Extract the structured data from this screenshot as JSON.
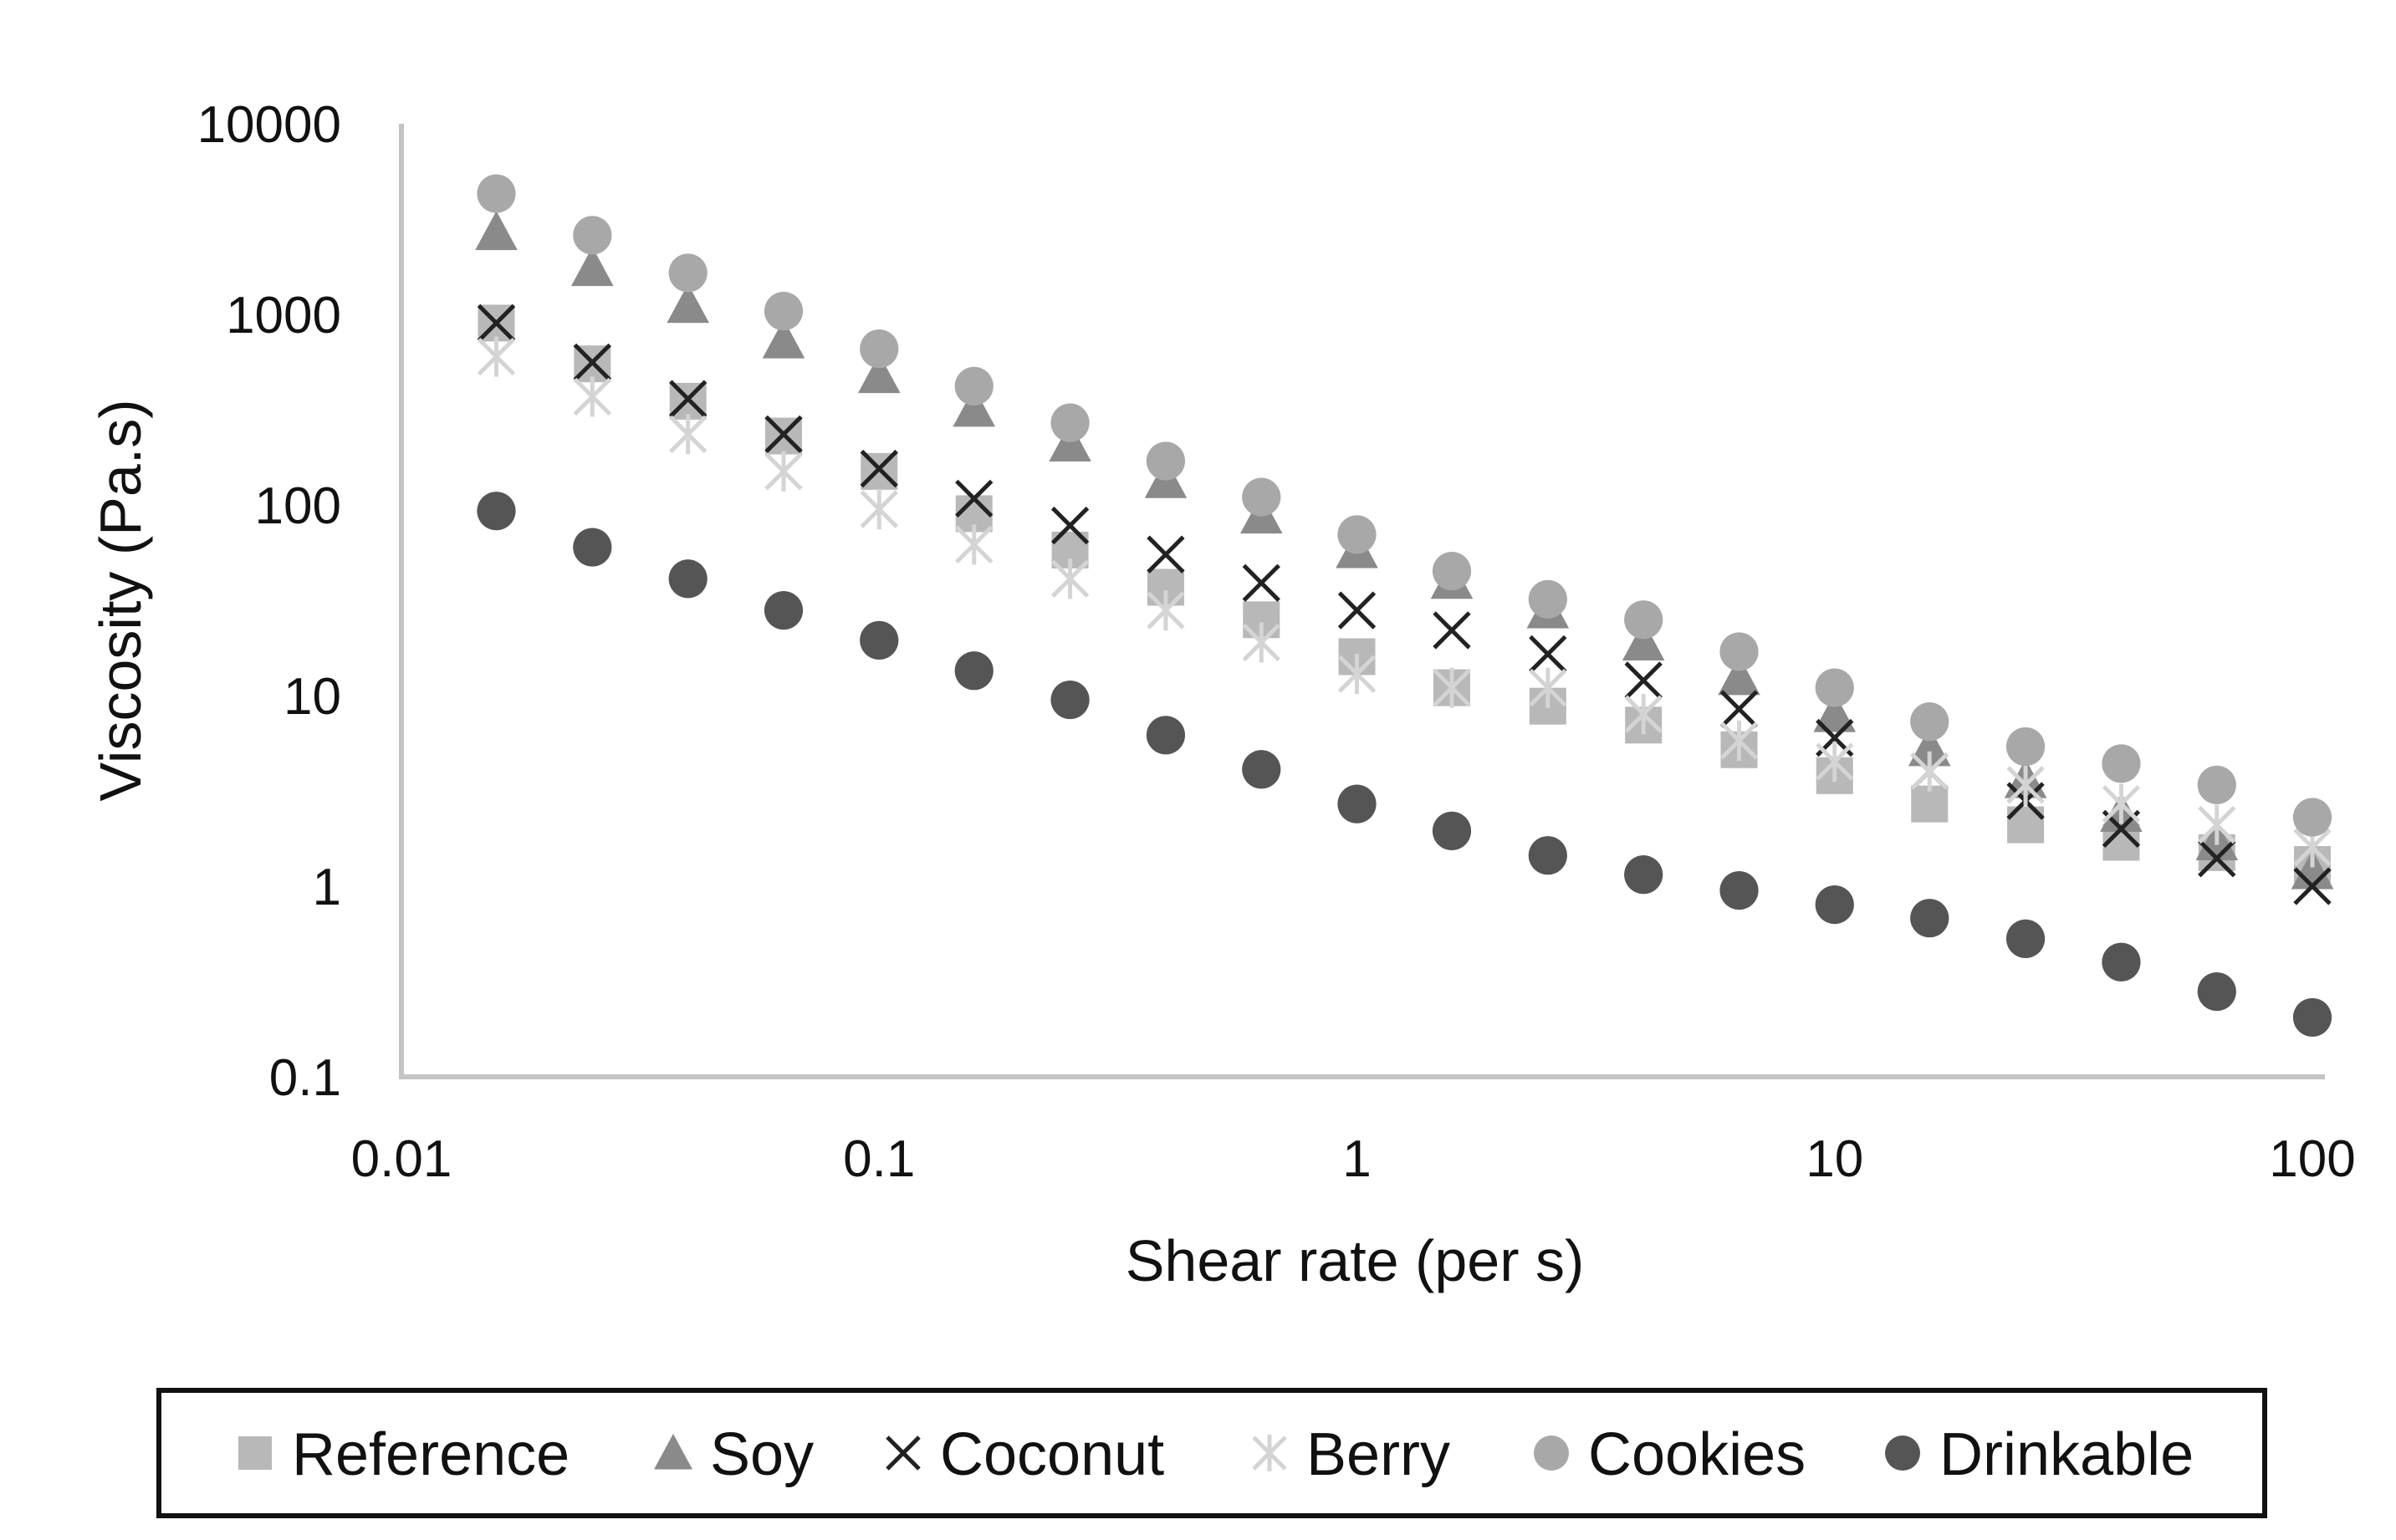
{
  "chart_data": {
    "type": "scatter",
    "x_scale": "log",
    "y_scale": "log",
    "xlabel": "Shear rate (per s)",
    "ylabel": "Viscosity (Pa.s)",
    "xlim": [
      0.01,
      100
    ],
    "ylim": [
      0.1,
      10000
    ],
    "x_tick_labels": [
      "0.01",
      "0.1",
      "1",
      "10",
      "100"
    ],
    "y_tick_labels": [
      "0.1",
      "1",
      "10",
      "100",
      "1000",
      "10000"
    ],
    "grid": false,
    "legend_position": "bottom",
    "x": [
      0.0158,
      0.0251,
      0.0398,
      0.0631,
      0.1,
      0.158,
      0.251,
      0.398,
      0.631,
      1,
      1.58,
      2.51,
      3.98,
      6.31,
      10,
      15.8,
      25.1,
      39.8,
      63.1,
      100
    ],
    "series": [
      {
        "name": "Reference",
        "marker": "square",
        "color": "#b8b8b8",
        "values": [
          900,
          550,
          350,
          230,
          150,
          90,
          58,
          37,
          25,
          16,
          11,
          8.8,
          7,
          5.2,
          3.8,
          2.7,
          2.1,
          1.7,
          1.5,
          1.3
        ]
      },
      {
        "name": "Soy",
        "marker": "triangle",
        "color": "#8a8a8a",
        "values": [
          2700,
          1750,
          1120,
          730,
          480,
          320,
          210,
          135,
          88,
          58,
          40,
          28,
          19,
          12.5,
          8,
          5.3,
          3.6,
          2.4,
          1.7,
          1.2
        ]
      },
      {
        "name": "Coconut",
        "marker": "x",
        "color": "#222222",
        "values": [
          900,
          560,
          360,
          235,
          155,
          108,
          78,
          55,
          39,
          28,
          22,
          16.5,
          12,
          8.5,
          6,
          4,
          2.8,
          2,
          1.4,
          1
        ]
      },
      {
        "name": "Berry",
        "marker": "asterisk",
        "color": "#d4d4d4",
        "values": [
          600,
          370,
          235,
          150,
          95,
          62,
          41,
          28,
          19,
          13,
          11,
          11,
          8,
          5.8,
          4.5,
          4,
          3.4,
          2.7,
          2.1,
          1.6
        ]
      },
      {
        "name": "Cookies",
        "marker": "circle",
        "color": "#a8a8a8",
        "values": [
          4300,
          2600,
          1650,
          1040,
          660,
          420,
          270,
          170,
          110,
          70,
          45,
          32,
          25,
          17,
          11,
          7.3,
          5.4,
          4.4,
          3.4,
          2.3
        ]
      },
      {
        "name": "Drinkable",
        "marker": "circle",
        "color": "#555555",
        "values": [
          93,
          60,
          41,
          28,
          19.5,
          13.5,
          9.5,
          6.2,
          4.1,
          2.7,
          1.95,
          1.45,
          1.15,
          0.95,
          0.8,
          0.68,
          0.53,
          0.4,
          0.28,
          0.205
        ]
      }
    ]
  }
}
